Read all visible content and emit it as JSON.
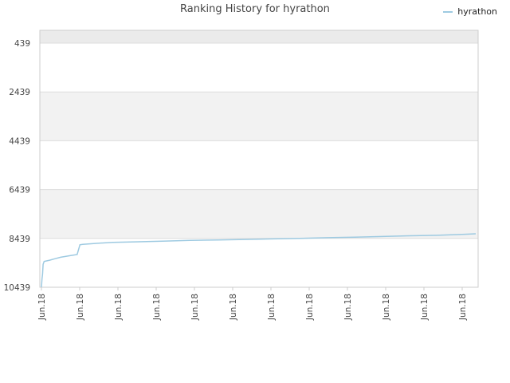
{
  "chart_data": {
    "type": "line",
    "title": "Ranking History for hyrathon",
    "xlabel": "",
    "ylabel": "",
    "y_inverted": true,
    "ylim": [
      439,
      10439
    ],
    "y_ticks": [
      439,
      2439,
      4439,
      6439,
      8439,
      10439
    ],
    "x_tick_labels": [
      "Jun.18",
      "Jun.18",
      "Jun.18",
      "Jun.18",
      "Jun.18",
      "Jun.18",
      "Jun.18",
      "Jun.18",
      "Jun.18",
      "Jun.18",
      "Jun.18",
      "Jun.18"
    ],
    "grid": true,
    "legend_placement": "top-right",
    "series": [
      {
        "name": "hyrathon",
        "color": "#9ecae1",
        "x": [
          0.0,
          0.2,
          0.4,
          0.6,
          1.0,
          3.0,
          5.0,
          7.0,
          10.0,
          13.0,
          14.0,
          15.0,
          20.0,
          26.0,
          34.0,
          44.0,
          54.0,
          64.0,
          74.0,
          84.0,
          94.0,
          104.0,
          114.0,
          124.0,
          134.0,
          144.0,
          154.0,
          158.0
        ],
        "y": [
          10439,
          10100,
          9900,
          9500,
          9380,
          9330,
          9270,
          9210,
          9150,
          9100,
          8700,
          8680,
          8640,
          8600,
          8580,
          8550,
          8520,
          8500,
          8480,
          8460,
          8440,
          8410,
          8390,
          8360,
          8330,
          8310,
          8270,
          8250
        ]
      }
    ]
  },
  "legend": {
    "label": "hyrathon",
    "color": "#9ecae1"
  },
  "colors": {
    "band": "#f2f2f2",
    "top_band": "#ebebeb",
    "grid": "#dddddd",
    "axis": "#cccccc"
  }
}
